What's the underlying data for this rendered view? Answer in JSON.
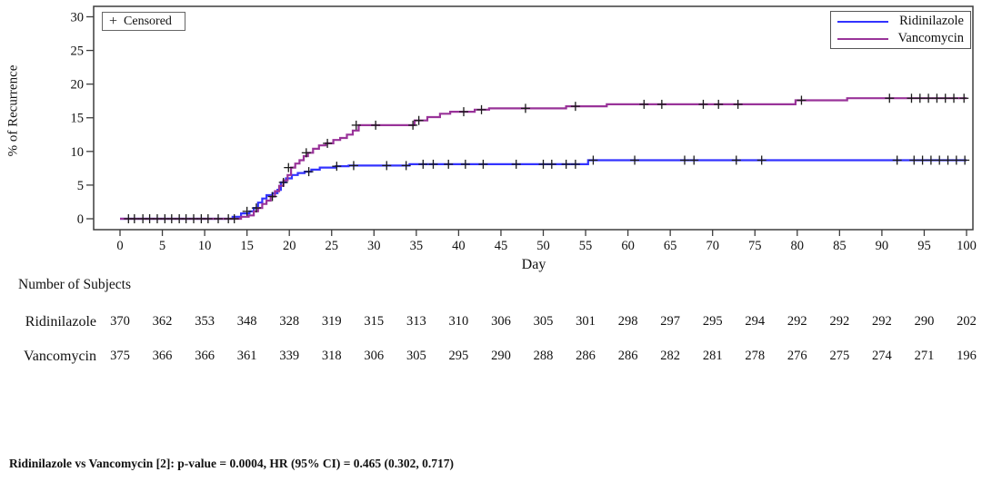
{
  "figure": {
    "ylabel": "% of Recurrence",
    "xlabel": "Day",
    "censored_marker": "+",
    "censored_label": "Censored",
    "footnote": "Ridinilazole vs Vancomycin [2]: p-value = 0.0004, HR (95% CI) = 0.465 (0.302, 0.717)"
  },
  "chart_data": {
    "type": "line",
    "subtype": "kaplan-meier-step",
    "title": "",
    "xlabel": "Day",
    "ylabel": "% of Recurrence",
    "xlim": [
      0,
      100
    ],
    "ylim": [
      0,
      30
    ],
    "x_ticks": [
      0,
      5,
      10,
      15,
      20,
      25,
      30,
      35,
      40,
      45,
      50,
      55,
      60,
      65,
      70,
      75,
      80,
      85,
      90,
      95,
      100
    ],
    "y_ticks": [
      0,
      5,
      10,
      15,
      20,
      25,
      30
    ],
    "grid": false,
    "legend_position": "top-right",
    "frame_color": "#3d3d3d",
    "censor_color": "#1a1a1a",
    "shared_censored_at_zero_days": [
      1.0,
      1.7,
      2.7,
      3.5,
      4.4,
      5.3,
      6.1,
      7.0,
      7.8,
      8.7,
      9.6,
      10.4,
      11.6,
      12.8,
      13.5
    ],
    "series": [
      {
        "name": "Ridinilazole",
        "color": "#3333ff",
        "steps": [
          [
            0,
            0
          ],
          [
            13.3,
            0
          ],
          [
            13.3,
            0.3
          ],
          [
            14.3,
            0.8
          ],
          [
            15.3,
            1.1
          ],
          [
            15.8,
            1.6
          ],
          [
            16.3,
            2.4
          ],
          [
            16.8,
            3.0
          ],
          [
            17.3,
            3.5
          ],
          [
            18.0,
            3.8
          ],
          [
            18.6,
            4.3
          ],
          [
            19.0,
            5.4
          ],
          [
            19.6,
            6.0
          ],
          [
            20.3,
            6.5
          ],
          [
            21.0,
            6.8
          ],
          [
            21.8,
            7.0
          ],
          [
            22.6,
            7.3
          ],
          [
            23.6,
            7.6
          ],
          [
            25.5,
            7.8
          ],
          [
            27.0,
            7.9
          ],
          [
            34.2,
            8.1
          ],
          [
            55.3,
            8.7
          ],
          [
            100,
            8.7
          ]
        ],
        "censored": [
          [
            15.0,
            1.1
          ],
          [
            19.3,
            5.4
          ],
          [
            22.3,
            7.0
          ],
          [
            25.6,
            7.8
          ],
          [
            27.6,
            7.9
          ],
          [
            31.5,
            7.9
          ],
          [
            33.8,
            7.9
          ],
          [
            35.8,
            8.1
          ],
          [
            37.0,
            8.1
          ],
          [
            38.8,
            8.1
          ],
          [
            40.8,
            8.1
          ],
          [
            42.9,
            8.1
          ],
          [
            46.8,
            8.1
          ],
          [
            50.0,
            8.1
          ],
          [
            51.0,
            8.1
          ],
          [
            52.7,
            8.1
          ],
          [
            53.8,
            8.1
          ],
          [
            55.9,
            8.7
          ],
          [
            60.8,
            8.7
          ],
          [
            66.7,
            8.7
          ],
          [
            67.8,
            8.7
          ],
          [
            72.8,
            8.7
          ],
          [
            75.8,
            8.7
          ],
          [
            91.8,
            8.7
          ],
          [
            93.8,
            8.7
          ],
          [
            94.8,
            8.7
          ],
          [
            95.8,
            8.7
          ],
          [
            96.8,
            8.7
          ],
          [
            97.8,
            8.7
          ],
          [
            98.8,
            8.7
          ],
          [
            99.8,
            8.7
          ]
        ]
      },
      {
        "name": "Vancomycin",
        "color": "#993399",
        "steps": [
          [
            0,
            0
          ],
          [
            14.0,
            0
          ],
          [
            14.3,
            0.3
          ],
          [
            15.2,
            0.5
          ],
          [
            15.8,
            1.1
          ],
          [
            16.3,
            1.6
          ],
          [
            16.8,
            2.2
          ],
          [
            17.3,
            2.7
          ],
          [
            17.8,
            3.3
          ],
          [
            18.3,
            4.1
          ],
          [
            18.8,
            4.9
          ],
          [
            19.3,
            5.7
          ],
          [
            19.8,
            6.5
          ],
          [
            20.2,
            7.6
          ],
          [
            20.7,
            8.2
          ],
          [
            21.2,
            8.7
          ],
          [
            21.7,
            9.3
          ],
          [
            22.2,
            9.8
          ],
          [
            22.8,
            10.4
          ],
          [
            23.5,
            10.9
          ],
          [
            24.3,
            11.2
          ],
          [
            25.2,
            11.7
          ],
          [
            26.0,
            12.0
          ],
          [
            26.8,
            12.5
          ],
          [
            27.5,
            13.1
          ],
          [
            28.2,
            13.9
          ],
          [
            34.8,
            14.6
          ],
          [
            36.3,
            15.1
          ],
          [
            37.8,
            15.6
          ],
          [
            39.0,
            15.9
          ],
          [
            41.9,
            16.2
          ],
          [
            43.6,
            16.4
          ],
          [
            52.7,
            16.7
          ],
          [
            57.5,
            17.0
          ],
          [
            79.8,
            17.6
          ],
          [
            85.9,
            17.9
          ],
          [
            100,
            17.9
          ]
        ],
        "censored": [
          [
            16.1,
            1.6
          ],
          [
            18.0,
            3.3
          ],
          [
            19.9,
            7.6
          ],
          [
            22.0,
            9.8
          ],
          [
            24.5,
            11.2
          ],
          [
            27.9,
            13.9
          ],
          [
            30.2,
            13.9
          ],
          [
            34.6,
            13.9
          ],
          [
            35.3,
            14.6
          ],
          [
            40.6,
            15.9
          ],
          [
            42.7,
            16.2
          ],
          [
            47.9,
            16.4
          ],
          [
            53.8,
            16.7
          ],
          [
            61.9,
            17.0
          ],
          [
            64.0,
            17.0
          ],
          [
            68.9,
            17.0
          ],
          [
            70.7,
            17.0
          ],
          [
            73.0,
            17.0
          ],
          [
            80.5,
            17.6
          ],
          [
            90.9,
            17.9
          ],
          [
            93.5,
            17.9
          ],
          [
            94.5,
            17.9
          ],
          [
            95.5,
            17.9
          ],
          [
            96.5,
            17.9
          ],
          [
            97.5,
            17.9
          ],
          [
            98.5,
            17.9
          ],
          [
            99.7,
            17.9
          ]
        ]
      }
    ]
  },
  "subjects_table": {
    "header": "Number of Subjects",
    "days": [
      0,
      5,
      10,
      15,
      20,
      25,
      30,
      35,
      40,
      45,
      50,
      55,
      60,
      65,
      70,
      75,
      80,
      85,
      90,
      95,
      100
    ],
    "rows": [
      {
        "label": "Ridinilazole",
        "values": [
          370,
          362,
          353,
          348,
          328,
          319,
          315,
          313,
          310,
          306,
          305,
          301,
          298,
          297,
          295,
          294,
          292,
          292,
          292,
          290,
          202
        ]
      },
      {
        "label": "Vancomycin",
        "values": [
          375,
          366,
          366,
          361,
          339,
          318,
          306,
          305,
          295,
          290,
          288,
          286,
          286,
          282,
          281,
          278,
          276,
          275,
          274,
          271,
          196
        ]
      }
    ]
  }
}
